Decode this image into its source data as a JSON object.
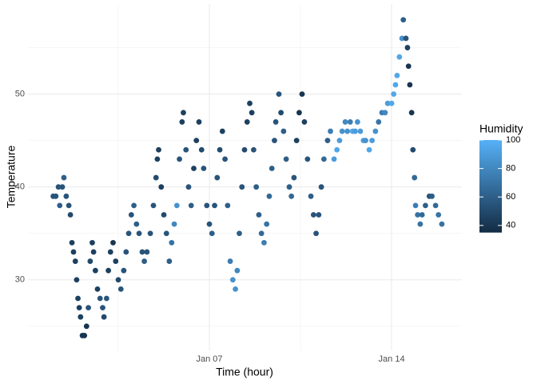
{
  "chart_data": {
    "type": "scatter",
    "x_label": "Time (hour)",
    "y_label": "Temperature",
    "xlim": [
      0.03,
      16.7
    ],
    "xticks": [
      {
        "value": 7,
        "label": "Jan 07"
      },
      {
        "value": 14,
        "label": "Jan 14"
      }
    ],
    "ylim": [
      22.4,
      59.7
    ],
    "yticks": [
      30,
      40,
      50
    ],
    "grid": true,
    "color_scale": {
      "title": "Humidity",
      "lim": [
        35,
        100
      ],
      "ticks": [
        40,
        60,
        80,
        100
      ],
      "low": "#132B43",
      "high": "#56B1F7"
    },
    "x": [
      1.0,
      1.1,
      1.2,
      1.25,
      1.35,
      1.41,
      1.5,
      1.6,
      1.66,
      1.72,
      1.78,
      1.85,
      1.9,
      1.95,
      2.0,
      2.05,
      2.12,
      2.2,
      2.28,
      2.35,
      2.42,
      2.5,
      2.55,
      2.62,
      2.7,
      2.8,
      2.9,
      2.95,
      3.05,
      3.12,
      3.2,
      3.3,
      3.4,
      3.5,
      3.6,
      3.71,
      3.8,
      3.9,
      4.0,
      4.1,
      4.2,
      4.3,
      4.42,
      4.5,
      4.6,
      4.73,
      4.85,
      4.95,
      5.0,
      5.05,
      5.15,
      5.25,
      5.35,
      5.46,
      5.55,
      5.65,
      5.75,
      5.85,
      5.95,
      6.0,
      6.1,
      6.2,
      6.3,
      6.4,
      6.5,
      6.6,
      6.7,
      6.78,
      6.9,
      7.0,
      7.1,
      7.2,
      7.3,
      7.4,
      7.5,
      7.6,
      7.7,
      7.8,
      7.9,
      8.0,
      8.07,
      8.15,
      8.25,
      8.35,
      8.45,
      8.55,
      8.63,
      8.7,
      8.8,
      8.9,
      9.0,
      9.1,
      9.2,
      9.3,
      9.4,
      9.5,
      9.55,
      9.67,
      9.75,
      9.85,
      9.95,
      10.07,
      10.15,
      10.25,
      10.35,
      10.45,
      10.56,
      10.65,
      10.77,
      10.9,
      11.0,
      11.1,
      11.2,
      11.3,
      11.4,
      11.54,
      11.65,
      11.79,
      11.9,
      12.0,
      12.1,
      12.22,
      12.3,
      12.41,
      12.5,
      12.6,
      12.69,
      12.8,
      12.92,
      13.0,
      13.14,
      13.25,
      13.38,
      13.5,
      13.63,
      13.75,
      13.85,
      14.0,
      14.08,
      14.15,
      14.21,
      14.3,
      14.4,
      14.45,
      14.55,
      14.61,
      14.65,
      14.7,
      14.77,
      14.82,
      14.88,
      14.92,
      15.0,
      15.1,
      15.17,
      15.3,
      15.45,
      15.55,
      15.69,
      15.8,
      15.93
    ],
    "values": [
      39,
      39,
      40,
      38,
      40,
      41,
      39,
      38,
      37,
      34,
      33,
      32,
      30,
      28,
      27,
      26,
      24,
      24,
      25,
      27,
      32,
      34,
      33,
      31,
      29,
      28,
      27,
      26,
      28,
      31,
      33,
      34,
      32,
      30,
      29,
      31,
      33,
      35,
      37,
      38,
      36,
      35,
      33,
      32,
      33,
      35,
      38,
      41,
      43,
      44,
      40,
      37,
      35,
      32,
      34,
      36,
      38,
      43,
      47,
      48,
      44,
      40,
      38,
      42,
      45,
      47,
      44,
      42,
      38,
      36,
      35,
      38,
      41,
      44,
      46,
      43,
      38,
      32,
      30,
      29,
      31,
      35,
      40,
      44,
      47,
      49,
      48,
      44,
      40,
      37,
      35,
      34,
      36,
      39,
      42,
      45,
      47,
      50,
      48,
      46,
      43,
      40,
      39,
      41,
      45,
      48,
      50,
      47,
      43,
      39,
      37,
      35,
      37,
      40,
      43,
      45,
      46,
      43,
      44,
      45,
      46,
      47,
      46,
      47,
      46,
      46,
      47,
      46,
      45,
      45,
      44,
      45,
      46,
      47,
      48,
      48,
      49,
      49,
      50,
      51,
      52,
      54,
      56,
      58,
      56,
      55,
      53,
      51,
      48,
      44,
      41,
      38,
      37,
      36,
      37,
      38,
      39,
      39,
      38,
      37,
      36
    ],
    "humidity": [
      55,
      55,
      55,
      60,
      55,
      60,
      55,
      55,
      50,
      45,
      45,
      45,
      45,
      45,
      45,
      45,
      40,
      40,
      40,
      55,
      50,
      45,
      45,
      45,
      45,
      55,
      55,
      50,
      55,
      45,
      45,
      40,
      45,
      50,
      55,
      55,
      55,
      55,
      55,
      60,
      60,
      55,
      55,
      60,
      55,
      55,
      55,
      50,
      45,
      45,
      45,
      50,
      55,
      60,
      70,
      80,
      85,
      55,
      45,
      45,
      55,
      55,
      60,
      45,
      45,
      45,
      50,
      55,
      55,
      55,
      60,
      55,
      55,
      50,
      45,
      55,
      60,
      75,
      85,
      85,
      80,
      60,
      55,
      50,
      45,
      45,
      45,
      55,
      60,
      60,
      65,
      75,
      70,
      65,
      60,
      55,
      55,
      55,
      50,
      60,
      60,
      60,
      65,
      55,
      45,
      40,
      40,
      45,
      55,
      60,
      55,
      55,
      55,
      55,
      65,
      60,
      75,
      90,
      95,
      90,
      85,
      80,
      85,
      75,
      95,
      90,
      85,
      90,
      90,
      85,
      95,
      90,
      85,
      70,
      75,
      80,
      90,
      95,
      95,
      95,
      95,
      95,
      85,
      60,
      55,
      45,
      40,
      40,
      40,
      50,
      65,
      75,
      70,
      70,
      65,
      60,
      55,
      60,
      65,
      70,
      70
    ]
  }
}
